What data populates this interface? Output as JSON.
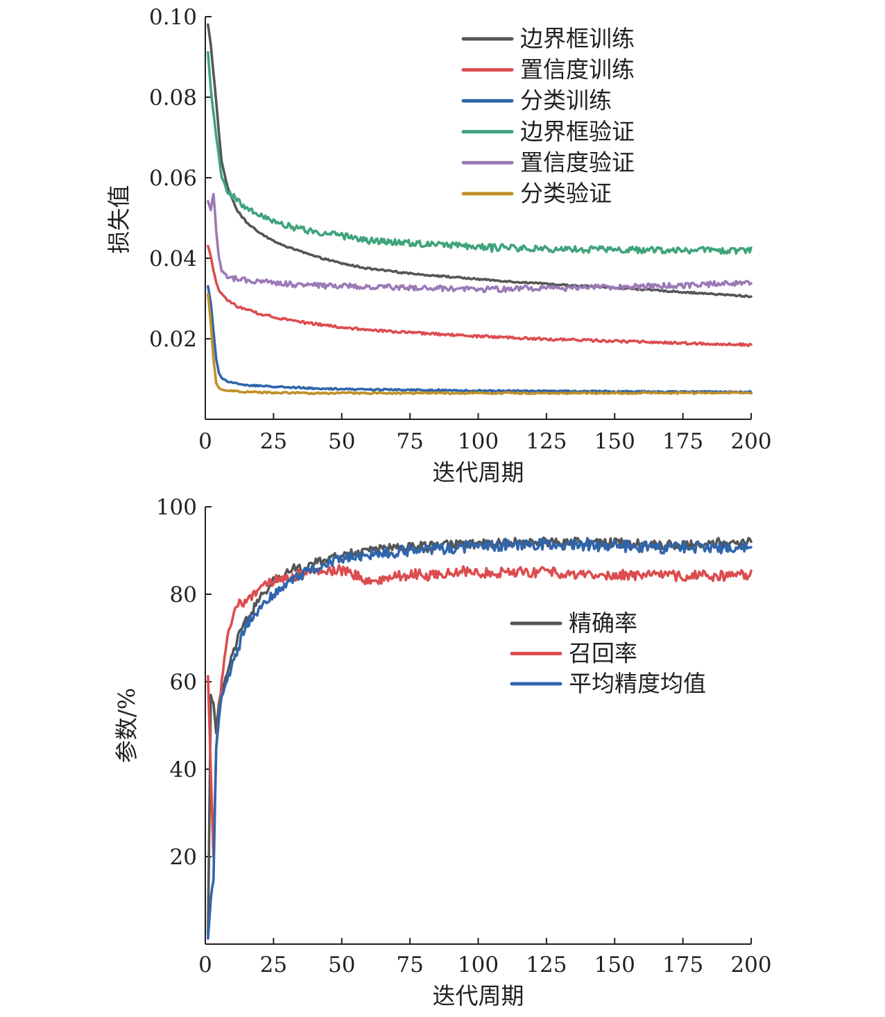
{
  "chart_data": [
    {
      "type": "line",
      "title": "",
      "xlabel": "迭代周期",
      "ylabel": "损失值",
      "xlim": [
        0,
        200
      ],
      "ylim": [
        0,
        0.1
      ],
      "xticks": [
        "0",
        "25",
        "50",
        "75",
        "100",
        "125",
        "150",
        "175",
        "200"
      ],
      "yticks": [
        "0.02",
        "0.04",
        "0.06",
        "0.08",
        "0.10"
      ],
      "grid": false,
      "legend_position": "top-right",
      "x": [
        1,
        2,
        3,
        4,
        5,
        6,
        8,
        10,
        12,
        15,
        20,
        25,
        30,
        40,
        50,
        60,
        75,
        100,
        125,
        150,
        175,
        200
      ],
      "series": [
        {
          "name": "边界框训练",
          "color": "#555555",
          "noise": 0.0002,
          "values": [
            0.098,
            0.093,
            0.086,
            0.079,
            0.071,
            0.064,
            0.058,
            0.0545,
            0.0515,
            0.049,
            0.0462,
            0.0443,
            0.0428,
            0.0405,
            0.0387,
            0.0374,
            0.0362,
            0.0348,
            0.0336,
            0.0327,
            0.0316,
            0.0305
          ]
        },
        {
          "name": "置信度训练",
          "color": "#dc4c4f",
          "noise": 0.0003,
          "values": [
            0.043,
            0.0405,
            0.037,
            0.034,
            0.032,
            0.0312,
            0.0298,
            0.0288,
            0.028,
            0.0272,
            0.0262,
            0.0255,
            0.0248,
            0.0237,
            0.0228,
            0.0222,
            0.0215,
            0.0206,
            0.0199,
            0.0194,
            0.0189,
            0.0185
          ]
        },
        {
          "name": "分类训练",
          "color": "#2f65ac",
          "noise": 0.0002,
          "values": [
            0.033,
            0.029,
            0.022,
            0.015,
            0.0115,
            0.0102,
            0.0095,
            0.0091,
            0.0088,
            0.0085,
            0.0083,
            0.0081,
            0.008,
            0.0077,
            0.0075,
            0.0074,
            0.0073,
            0.0071,
            0.007,
            0.0069,
            0.0068,
            0.0068
          ]
        },
        {
          "name": "边界框验证",
          "color": "#3fa37b",
          "noise": 0.0008,
          "values": [
            0.091,
            0.082,
            0.076,
            0.07,
            0.065,
            0.06,
            0.057,
            0.0555,
            0.054,
            0.0525,
            0.051,
            0.0495,
            0.048,
            0.0465,
            0.0455,
            0.0445,
            0.0437,
            0.0428,
            0.0423,
            0.0421,
            0.042,
            0.0419
          ]
        },
        {
          "name": "置信度验证",
          "color": "#9b79b6",
          "noise": 0.0007,
          "values": [
            0.054,
            0.052,
            0.056,
            0.047,
            0.04,
            0.037,
            0.0355,
            0.035,
            0.0348,
            0.0345,
            0.0342,
            0.0338,
            0.0336,
            0.0332,
            0.0331,
            0.033,
            0.0327,
            0.0323,
            0.0325,
            0.0328,
            0.0333,
            0.034
          ]
        },
        {
          "name": "分类验证",
          "color": "#c09028",
          "noise": 0.0002,
          "values": [
            0.031,
            0.024,
            0.015,
            0.009,
            0.0078,
            0.0074,
            0.0071,
            0.007,
            0.0069,
            0.0068,
            0.0067,
            0.0066,
            0.0066,
            0.0065,
            0.0065,
            0.0065,
            0.0065,
            0.0065,
            0.0065,
            0.0065,
            0.0065,
            0.0066
          ]
        }
      ]
    },
    {
      "type": "line",
      "title": "",
      "xlabel": "迭代周期",
      "ylabel": "参数/%",
      "xlim": [
        0,
        200
      ],
      "ylim": [
        0,
        100
      ],
      "xticks": [
        "0",
        "25",
        "50",
        "75",
        "100",
        "125",
        "150",
        "175",
        "200"
      ],
      "yticks": [
        "20",
        "40",
        "60",
        "80",
        "100"
      ],
      "grid": false,
      "legend_position": "center-right",
      "x": [
        1,
        2,
        3,
        4,
        5,
        6,
        8,
        10,
        12,
        15,
        20,
        25,
        30,
        40,
        50,
        60,
        75,
        100,
        125,
        150,
        175,
        200
      ],
      "series": [
        {
          "name": "精确率",
          "color": "#555555",
          "noise": 1.0,
          "values": [
            2,
            57,
            55,
            48,
            55,
            58,
            62,
            66,
            70,
            74,
            79,
            83,
            85,
            87,
            89,
            90,
            91,
            91.5,
            92,
            91.8,
            91.2,
            92
          ]
        },
        {
          "name": "召回率",
          "color": "#dc4c4f",
          "noise": 1.2,
          "values": [
            61,
            40,
            20,
            45,
            52,
            60,
            70,
            75,
            77,
            79,
            81,
            83,
            84,
            85,
            85.5,
            83,
            84.5,
            85,
            85,
            84.5,
            84.2,
            84.3
          ]
        },
        {
          "name": "平均精度均值",
          "color": "#2f65ac",
          "noise": 1.3,
          "values": [
            1,
            10,
            15,
            45,
            52,
            57,
            60,
            64,
            68,
            73,
            77,
            80,
            83,
            86,
            88,
            89,
            90,
            91,
            91.5,
            91,
            90.5,
            90.8
          ]
        }
      ]
    }
  ]
}
